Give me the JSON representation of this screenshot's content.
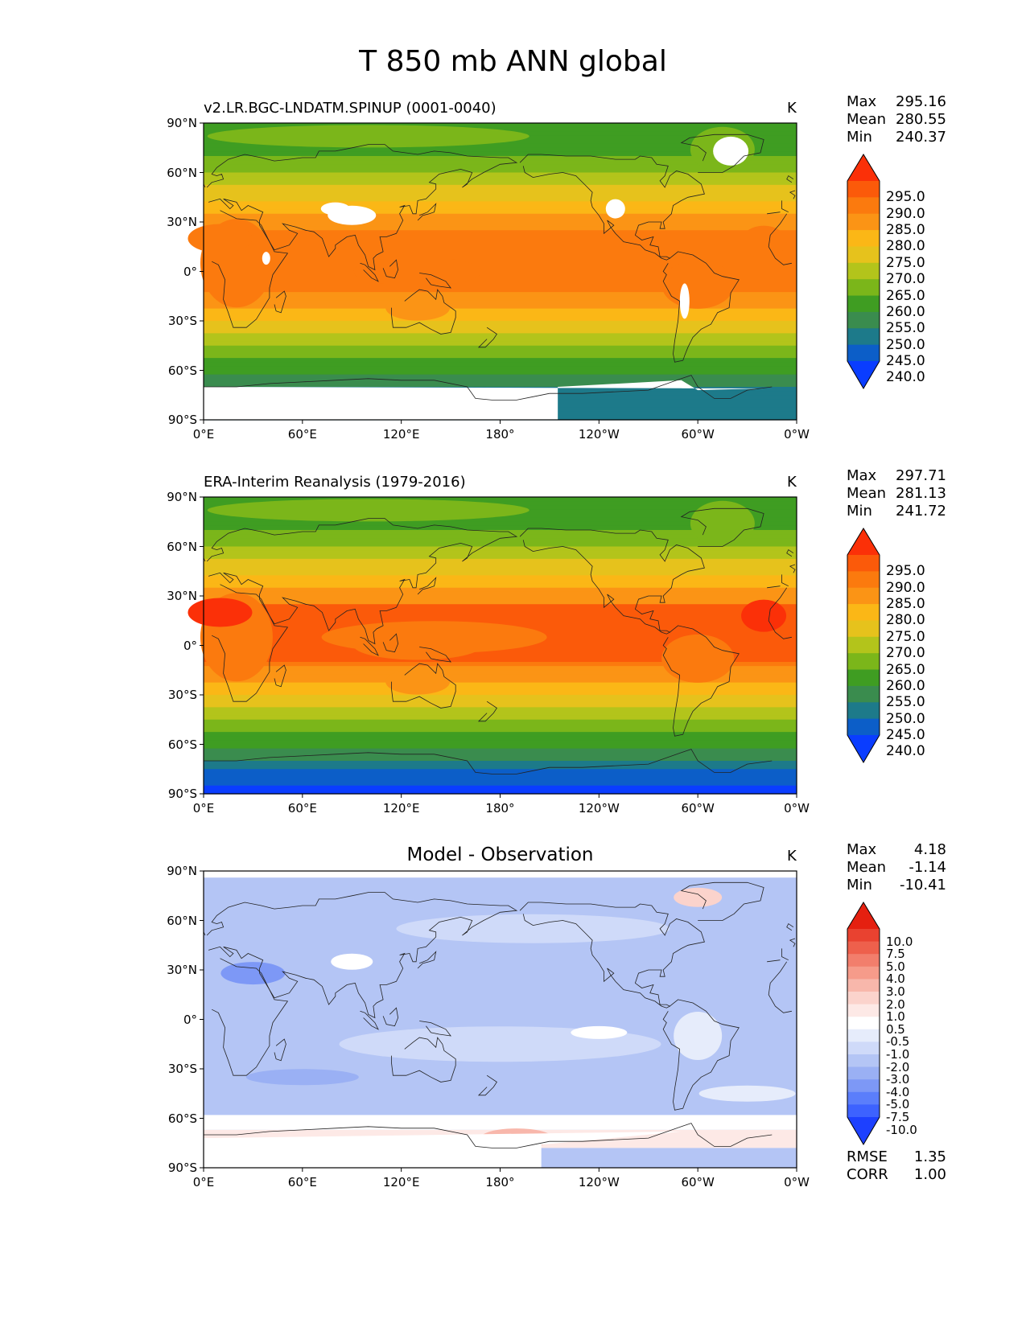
{
  "title": "T 850 mb ANN global",
  "lat_ticks": [
    "90°N",
    "60°N",
    "30°N",
    "0°",
    "30°S",
    "60°S",
    "90°S"
  ],
  "lon_ticks": [
    "0°E",
    "60°E",
    "120°E",
    "180°",
    "120°W",
    "60°W",
    "0°W"
  ],
  "colors": {
    "temperature_scale": [
      "#0a3dff",
      "#0c5ec8",
      "#1d7a8a",
      "#3a8c4e",
      "#3f9d22",
      "#7bb61a",
      "#b3c41b",
      "#e6c21c",
      "#fbb716",
      "#fb9415",
      "#fb7a0e",
      "#fb5a0a",
      "#fb3008"
    ],
    "difference_scale": [
      "#1d40ff",
      "#3d62ff",
      "#5b7efb",
      "#7d98f6",
      "#9ab0f4",
      "#b4c5f5",
      "#cfdaf9",
      "#e6ecfb",
      "#ffffff",
      "#fde9e6",
      "#fbd3cc",
      "#f8b7ab",
      "#f69b8a",
      "#f27e6c",
      "#ee604c",
      "#e94230",
      "#e52010"
    ],
    "land_outline": "#222222",
    "missing": "#ffffff"
  },
  "panels": [
    {
      "title": "v2.LR.BGC-LNDATM.SPINUP (0001-0040)",
      "units": "K",
      "stats": [
        {
          "label": "Max",
          "value": "295.16"
        },
        {
          "label": "Mean",
          "value": "280.55"
        },
        {
          "label": "Min",
          "value": "240.37"
        }
      ],
      "colorbar_labels": [
        "295.0",
        "290.0",
        "285.0",
        "280.0",
        "275.0",
        "270.0",
        "265.0",
        "260.0",
        "255.0",
        "250.0",
        "245.0",
        "240.0"
      ]
    },
    {
      "title": "ERA-Interim Reanalysis (1979-2016)",
      "units": "K",
      "stats": [
        {
          "label": "Max",
          "value": "297.71"
        },
        {
          "label": "Mean",
          "value": "281.13"
        },
        {
          "label": "Min",
          "value": "241.72"
        }
      ],
      "colorbar_labels": [
        "295.0",
        "290.0",
        "285.0",
        "280.0",
        "275.0",
        "270.0",
        "265.0",
        "260.0",
        "255.0",
        "250.0",
        "245.0",
        "240.0"
      ]
    },
    {
      "title": "Model - Observation",
      "units": "K",
      "stats": [
        {
          "label": "Max",
          "value": "4.18"
        },
        {
          "label": "Mean",
          "value": "-1.14"
        },
        {
          "label": "Min",
          "value": "-10.41"
        }
      ],
      "colorbar_labels": [
        "10.0",
        "7.5",
        "5.0",
        "4.0",
        "3.0",
        "2.0",
        "1.0",
        "0.5",
        "-0.5",
        "-1.0",
        "-2.0",
        "-3.0",
        "-4.0",
        "-5.0",
        "-7.5",
        "-10.0"
      ],
      "metrics": [
        {
          "label": "RMSE",
          "value": "1.35"
        },
        {
          "label": "CORR",
          "value": "1.00"
        }
      ]
    }
  ]
}
